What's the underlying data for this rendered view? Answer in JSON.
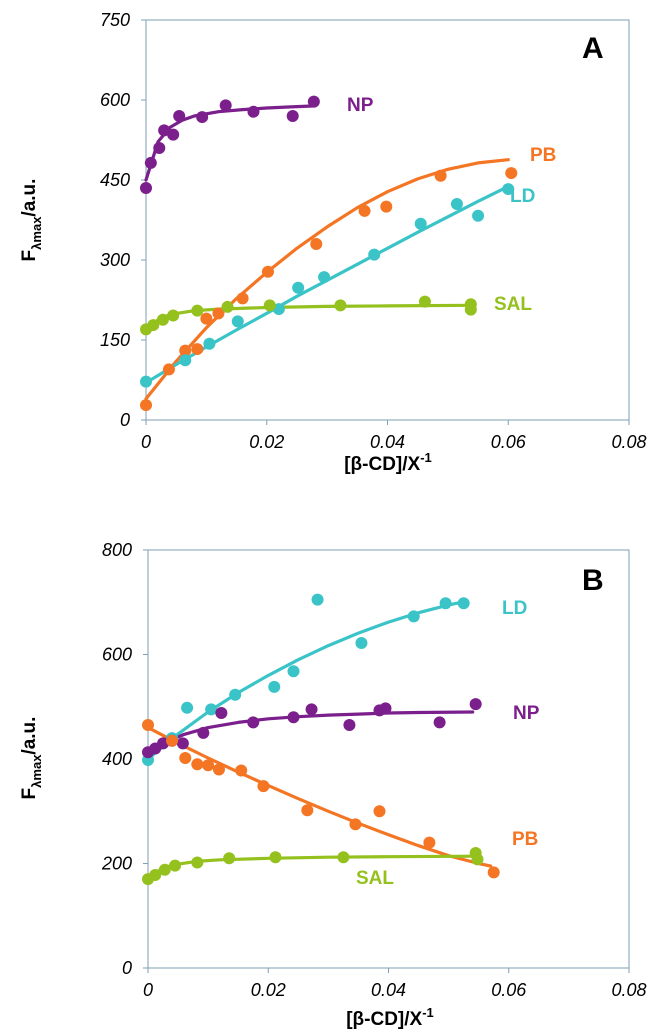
{
  "chart_data": [
    {
      "type": "scatter",
      "panel_label": "A",
      "xlabel": "[β-CD]/X",
      "xlabel_exp": "-1",
      "ylabel_main": "F",
      "ylabel_sub": "λmax",
      "ylabel_tail": "/a.u.",
      "xlim": [
        0,
        0.08
      ],
      "ylim": [
        0,
        750
      ],
      "xticks": [
        0,
        0.02,
        0.04,
        0.06,
        0.08
      ],
      "xtick_labels": [
        "0",
        "0.02",
        "0.04",
        "0.06",
        "0.08"
      ],
      "yticks": [
        0,
        150,
        300,
        450,
        600,
        750
      ],
      "ytick_labels": [
        "0",
        "150",
        "300",
        "450",
        "600",
        "750"
      ],
      "grid": false,
      "series": [
        {
          "name": "NP",
          "color": "#7B1F8C",
          "points": [
            [
              0.0,
              435
            ],
            [
              0.0008,
              482
            ],
            [
              0.0022,
              510
            ],
            [
              0.003,
              543
            ],
            [
              0.0045,
              535
            ],
            [
              0.0055,
              570
            ],
            [
              0.0093,
              568
            ],
            [
              0.0132,
              590
            ],
            [
              0.0178,
              578
            ],
            [
              0.0243,
              570
            ],
            [
              0.0278,
              597
            ]
          ],
          "fit": [
            [
              0.0,
              450
            ],
            [
              0.002,
              522
            ],
            [
              0.004,
              549
            ],
            [
              0.006,
              562
            ],
            [
              0.008,
              570
            ],
            [
              0.012,
              578
            ],
            [
              0.016,
              582
            ],
            [
              0.02,
              585
            ],
            [
              0.024,
              587
            ],
            [
              0.028,
              589
            ]
          ]
        },
        {
          "name": "PB",
          "color": "#F47523",
          "points": [
            [
              0.0,
              28
            ],
            [
              0.0038,
              95
            ],
            [
              0.0065,
              130
            ],
            [
              0.0085,
              133
            ],
            [
              0.01,
              190
            ],
            [
              0.012,
              200
            ],
            [
              0.016,
              228
            ],
            [
              0.0202,
              278
            ],
            [
              0.0282,
              330
            ],
            [
              0.0362,
              392
            ],
            [
              0.0398,
              400
            ],
            [
              0.0488,
              458
            ],
            [
              0.0605,
              463
            ]
          ],
          "fit": [
            [
              0.0,
              40
            ],
            [
              0.005,
              110
            ],
            [
              0.01,
              173
            ],
            [
              0.015,
              228
            ],
            [
              0.02,
              277
            ],
            [
              0.025,
              322
            ],
            [
              0.03,
              362
            ],
            [
              0.035,
              398
            ],
            [
              0.04,
              428
            ],
            [
              0.045,
              452
            ],
            [
              0.05,
              470
            ],
            [
              0.055,
              482
            ],
            [
              0.06,
              488
            ]
          ]
        },
        {
          "name": "LD",
          "color": "#3BC4C8",
          "points": [
            [
              0.0,
              72
            ],
            [
              0.0065,
              112
            ],
            [
              0.0105,
              143
            ],
            [
              0.0152,
              185
            ],
            [
              0.022,
              208
            ],
            [
              0.0252,
              248
            ],
            [
              0.0295,
              268
            ],
            [
              0.0378,
              310
            ],
            [
              0.0455,
              368
            ],
            [
              0.0515,
              405
            ],
            [
              0.055,
              383
            ],
            [
              0.06,
              433
            ]
          ],
          "fit": [
            [
              0.0,
              70
            ],
            [
              0.005,
              104
            ],
            [
              0.01,
              137
            ],
            [
              0.015,
              169
            ],
            [
              0.02,
              200
            ],
            [
              0.025,
              232
            ],
            [
              0.03,
              262
            ],
            [
              0.035,
              292
            ],
            [
              0.04,
              322
            ],
            [
              0.045,
              352
            ],
            [
              0.05,
              381
            ],
            [
              0.055,
              410
            ],
            [
              0.06,
              438
            ]
          ]
        },
        {
          "name": "SAL",
          "color": "#95C11F",
          "points": [
            [
              0.0,
              170
            ],
            [
              0.0012,
              178
            ],
            [
              0.0028,
              188
            ],
            [
              0.0045,
              196
            ],
            [
              0.0085,
              205
            ],
            [
              0.0135,
              212
            ],
            [
              0.0205,
              215
            ],
            [
              0.0322,
              215
            ],
            [
              0.0462,
              222
            ],
            [
              0.0538,
              217
            ],
            [
              0.0538,
              207
            ]
          ],
          "fit": [
            [
              0.0,
              168
            ],
            [
              0.002,
              188
            ],
            [
              0.004,
              198
            ],
            [
              0.008,
              205
            ],
            [
              0.012,
              208
            ],
            [
              0.02,
              211
            ],
            [
              0.03,
              213
            ],
            [
              0.04,
              214
            ],
            [
              0.054,
              215
            ]
          ]
        }
      ],
      "annotations": [
        "NP",
        "PB",
        "LD",
        "SAL"
      ]
    },
    {
      "type": "scatter",
      "panel_label": "B",
      "xlabel": "[β-CD]/X",
      "xlabel_exp": "-1",
      "ylabel_main": "F",
      "ylabel_sub": "λmax",
      "ylabel_tail": "/a.u.",
      "xlim": [
        0,
        0.08
      ],
      "ylim": [
        0,
        800
      ],
      "xticks": [
        0,
        0.02,
        0.04,
        0.06,
        0.08
      ],
      "xtick_labels": [
        "0",
        "0.02",
        "0.04",
        "0.06",
        "0.08"
      ],
      "yticks": [
        0,
        200,
        400,
        600,
        800
      ],
      "ytick_labels": [
        "0",
        "200",
        "400",
        "600",
        "800"
      ],
      "grid": false,
      "series": [
        {
          "name": "LD",
          "color": "#3BC4C8",
          "points": [
            [
              0.0,
              398
            ],
            [
              0.004,
              440
            ],
            [
              0.0065,
              498
            ],
            [
              0.0105,
              495
            ],
            [
              0.0145,
              523
            ],
            [
              0.021,
              538
            ],
            [
              0.0242,
              568
            ],
            [
              0.0282,
              705
            ],
            [
              0.0355,
              622
            ],
            [
              0.0442,
              673
            ],
            [
              0.0495,
              698
            ],
            [
              0.0525,
              698
            ]
          ],
          "fit": [
            [
              0.0,
              400
            ],
            [
              0.005,
              448
            ],
            [
              0.01,
              490
            ],
            [
              0.015,
              527
            ],
            [
              0.02,
              560
            ],
            [
              0.025,
              590
            ],
            [
              0.03,
              617
            ],
            [
              0.035,
              641
            ],
            [
              0.04,
              662
            ],
            [
              0.045,
              680
            ],
            [
              0.05,
              695
            ],
            [
              0.053,
              702
            ]
          ]
        },
        {
          "name": "NP",
          "color": "#7B1F8C",
          "points": [
            [
              0.0,
              413
            ],
            [
              0.0012,
              420
            ],
            [
              0.0025,
              430
            ],
            [
              0.004,
              435
            ],
            [
              0.0058,
              430
            ],
            [
              0.0092,
              450
            ],
            [
              0.0122,
              488
            ],
            [
              0.0175,
              470
            ],
            [
              0.0242,
              480
            ],
            [
              0.0272,
              495
            ],
            [
              0.0335,
              465
            ],
            [
              0.0385,
              493
            ],
            [
              0.0395,
              497
            ],
            [
              0.0485,
              470
            ],
            [
              0.0545,
              505
            ]
          ],
          "fit": [
            [
              0.0,
              413
            ],
            [
              0.003,
              432
            ],
            [
              0.006,
              447
            ],
            [
              0.01,
              460
            ],
            [
              0.015,
              470
            ],
            [
              0.02,
              477
            ],
            [
              0.025,
              481
            ],
            [
              0.03,
              484
            ],
            [
              0.035,
              486
            ],
            [
              0.04,
              488
            ],
            [
              0.045,
              489
            ],
            [
              0.054,
              490
            ]
          ]
        },
        {
          "name": "PB",
          "color": "#F47523",
          "points": [
            [
              0.0,
              465
            ],
            [
              0.004,
              435
            ],
            [
              0.0062,
              402
            ],
            [
              0.0082,
              390
            ],
            [
              0.01,
              388
            ],
            [
              0.0118,
              380
            ],
            [
              0.0155,
              378
            ],
            [
              0.0192,
              348
            ],
            [
              0.0265,
              302
            ],
            [
              0.0345,
              275
            ],
            [
              0.0385,
              300
            ],
            [
              0.0468,
              240
            ],
            [
              0.0575,
              183
            ]
          ],
          "fit": [
            [
              0.0,
              460
            ],
            [
              0.005,
              430
            ],
            [
              0.01,
              402
            ],
            [
              0.015,
              375
            ],
            [
              0.02,
              349
            ],
            [
              0.025,
              324
            ],
            [
              0.03,
              300
            ],
            [
              0.035,
              277
            ],
            [
              0.04,
              255
            ],
            [
              0.045,
              234
            ],
            [
              0.05,
              215
            ],
            [
              0.055,
              200
            ],
            [
              0.057,
              195
            ]
          ]
        },
        {
          "name": "SAL",
          "color": "#95C11F",
          "points": [
            [
              0.0,
              170
            ],
            [
              0.0012,
              178
            ],
            [
              0.0028,
              188
            ],
            [
              0.0045,
              196
            ],
            [
              0.0082,
              202
            ],
            [
              0.0135,
              210
            ],
            [
              0.0212,
              212
            ],
            [
              0.0325,
              212
            ],
            [
              0.0545,
              220
            ],
            [
              0.0548,
              208
            ]
          ],
          "fit": [
            [
              0.0,
              168
            ],
            [
              0.002,
              188
            ],
            [
              0.004,
              197
            ],
            [
              0.008,
              204
            ],
            [
              0.012,
              207
            ],
            [
              0.02,
              210
            ],
            [
              0.03,
              212
            ],
            [
              0.04,
              213
            ],
            [
              0.055,
              214
            ]
          ]
        }
      ],
      "annotations": [
        "LD",
        "NP",
        "PB",
        "SAL"
      ]
    }
  ]
}
